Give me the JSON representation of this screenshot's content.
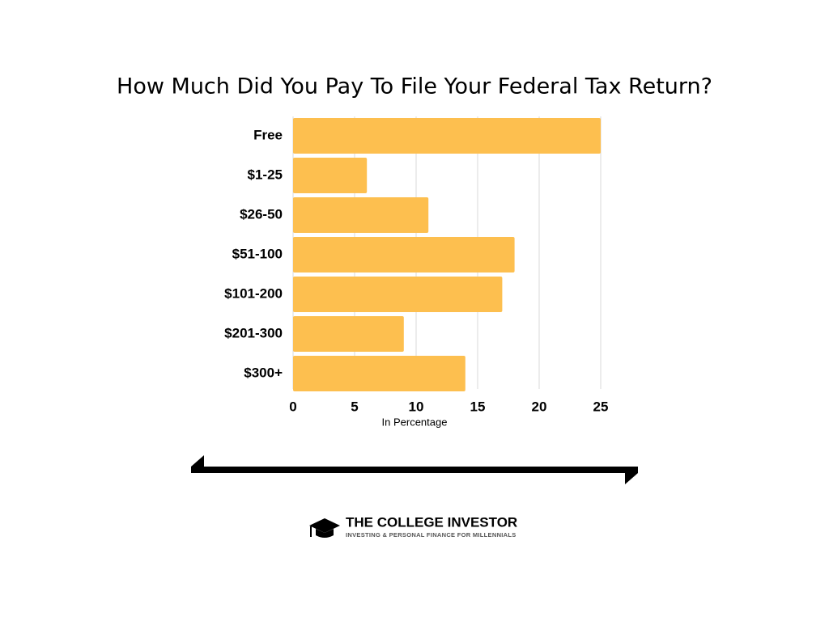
{
  "chart_data": {
    "type": "barh",
    "title": "How Much Did You Pay To File Your Federal Tax Return?",
    "categories": [
      "Free",
      "$1-25",
      "$26-50",
      "$51-100",
      "$101-200",
      "$201-300",
      "$300+"
    ],
    "values": [
      25,
      6,
      11,
      18,
      17,
      9,
      14
    ],
    "color": "#fdbf4f",
    "xlim": [
      0,
      25
    ],
    "xticks": [
      0,
      5,
      10,
      15,
      20,
      25
    ],
    "xlabel": "In Percentage",
    "grid": true
  },
  "logo": {
    "name": "THE COLLEGE INVESTOR",
    "tagline": "INVESTING & PERSONAL FINANCE FOR MILLENNIALS"
  }
}
